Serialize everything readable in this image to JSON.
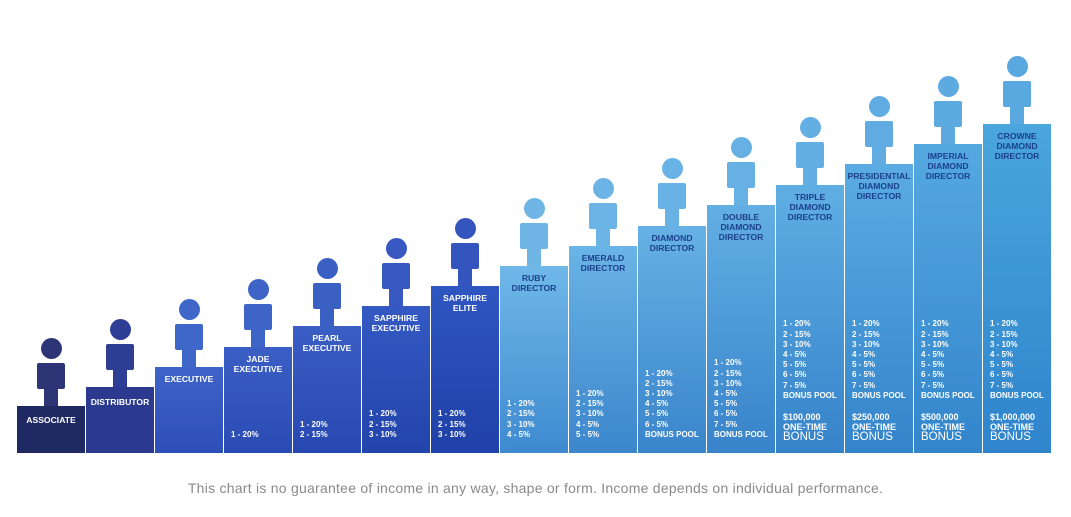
{
  "colors": {
    "associate": "#1f2a63",
    "distributor": "#2b3a8e",
    "sapphire_dark": "#1f4fb3",
    "ruby_light": "#6fb8e8",
    "crowne_light": "#4aa6dc",
    "label_dark": "#1c3f8c",
    "disclaimer": "#8a8a8a"
  },
  "ranks": [
    {
      "name": "ASSOCIATE",
      "payouts": [],
      "bonus_amount": "",
      "bonus_word": ""
    },
    {
      "name": "DISTRIBUTOR",
      "payouts": [],
      "bonus_amount": "",
      "bonus_word": ""
    },
    {
      "name": "EXECUTIVE",
      "payouts": [],
      "bonus_amount": "",
      "bonus_word": ""
    },
    {
      "name": "JADE\nEXECUTIVE",
      "payouts": [
        "1 - 20%"
      ],
      "bonus_amount": "",
      "bonus_word": ""
    },
    {
      "name": "PEARL\nEXECUTIVE",
      "payouts": [
        "1 - 20%",
        "2 - 15%"
      ],
      "bonus_amount": "",
      "bonus_word": ""
    },
    {
      "name": "SAPPHIRE\nEXECUTIVE",
      "payouts": [
        "1 - 20%",
        "2 - 15%",
        "3 - 10%"
      ],
      "bonus_amount": "",
      "bonus_word": ""
    },
    {
      "name": "SAPPHIRE\nELITE",
      "payouts": [
        "1 - 20%",
        "2 - 15%",
        "3 - 10%"
      ],
      "bonus_amount": "",
      "bonus_word": ""
    },
    {
      "name": "RUBY\nDIRECTOR",
      "payouts": [
        "1 - 20%",
        "2 - 15%",
        "3 - 10%",
        "4 - 5%"
      ],
      "bonus_amount": "",
      "bonus_word": ""
    },
    {
      "name": "EMERALD\nDIRECTOR",
      "payouts": [
        "1 - 20%",
        "2 - 15%",
        "3 - 10%",
        "4 - 5%",
        "5 - 5%"
      ],
      "bonus_amount": "",
      "bonus_word": ""
    },
    {
      "name": "DIAMOND\nDIRECTOR",
      "payouts": [
        "1 - 20%",
        "2 - 15%",
        "3 - 10%",
        "4 - 5%",
        "5 - 5%",
        "6 - 5%",
        "BONUS POOL"
      ],
      "bonus_amount": "",
      "bonus_word": ""
    },
    {
      "name": "DOUBLE\nDIAMOND\nDIRECTOR",
      "payouts": [
        "1 - 20%",
        "2 - 15%",
        "3 - 10%",
        "4 - 5%",
        "5 - 5%",
        "6 - 5%",
        "7 - 5%",
        "BONUS POOL"
      ],
      "bonus_amount": "",
      "bonus_word": ""
    },
    {
      "name": "TRIPLE\nDIAMOND\nDIRECTOR",
      "payouts": [
        "1 - 20%",
        "2 - 15%",
        "3 - 10%",
        "4 - 5%",
        "5 - 5%",
        "6 - 5%",
        "7 - 5%",
        "BONUS POOL"
      ],
      "bonus_amount": "$100,000\nONE-TIME",
      "bonus_word": "BONUS"
    },
    {
      "name": "PRESIDENTIAL\nDIAMOND\nDIRECTOR",
      "payouts": [
        "1 - 20%",
        "2 - 15%",
        "3 - 10%",
        "4 - 5%",
        "5 - 5%",
        "6 - 5%",
        "7 - 5%",
        "BONUS POOL"
      ],
      "bonus_amount": "$250,000\nONE-TIME",
      "bonus_word": "BONUS"
    },
    {
      "name": "IMPERIAL\nDIAMOND\nDIRECTOR",
      "payouts": [
        "1 - 20%",
        "2 - 15%",
        "3 - 10%",
        "4 - 5%",
        "5 - 5%",
        "6 - 5%",
        "7 - 5%",
        "BONUS POOL"
      ],
      "bonus_amount": "$500,000\nONE-TIME",
      "bonus_word": "BONUS"
    },
    {
      "name": "CROWNE\nDIAMOND\nDIRECTOR",
      "payouts": [
        "1 - 20%",
        "2 - 15%",
        "3 - 10%",
        "4 - 5%",
        "5 - 5%",
        "6 - 5%",
        "7 - 5%",
        "BONUS POOL"
      ],
      "bonus_amount": "$1,000,000\nONE-TIME",
      "bonus_word": "BONUS"
    }
  ],
  "disclaimer": "This chart is no guarantee of income in any way, shape or form. Income depends on individual performance."
}
